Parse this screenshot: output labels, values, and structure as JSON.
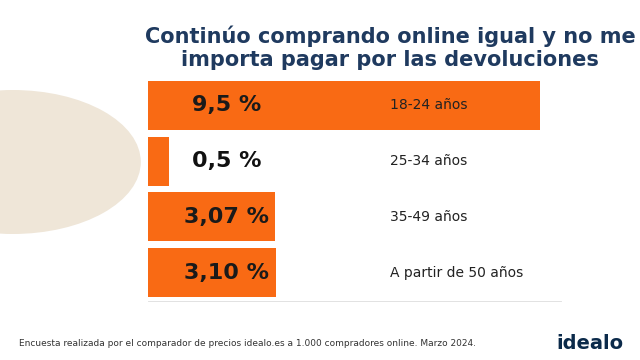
{
  "chart_data": {
    "type": "bar",
    "orientation": "horizontal",
    "title": "Continúo comprando online igual y no me importa pagar por las devoluciones",
    "categories": [
      "18-24 años",
      "25-34 años",
      "35-49 años",
      "A partir de 50 años"
    ],
    "values": [
      9.5,
      0.5,
      3.07,
      3.1
    ],
    "value_labels": [
      "9,5 %",
      "0,5 %",
      "3,07 %",
      "3,10 %"
    ],
    "data_labels": true,
    "color": "#f96a14",
    "xlim": [
      0,
      10
    ],
    "xticks": [],
    "tick_labels": false,
    "grid": false,
    "source": "Encuesta realizada por el comparador de precios idealo.es a 1.000 compradores online. Marzo 2024.",
    "logo": "idealo"
  }
}
